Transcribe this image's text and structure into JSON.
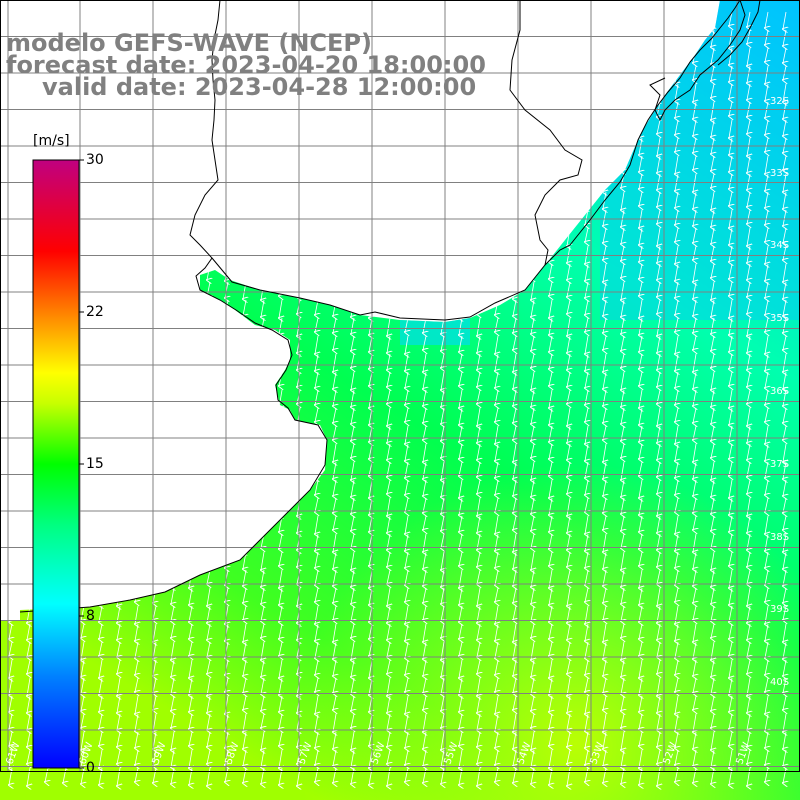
{
  "title": {
    "model": "modelo GEFS-WAVE (NCEP)",
    "forecast": "forecast date: 2023-04-20 18:00:00",
    "valid": "valid date: 2023-04-28 12:00:00"
  },
  "colorbar": {
    "unit": "[m/s]",
    "ticks": [
      "30",
      "22",
      "15",
      "8",
      "0"
    ],
    "min": 0,
    "max": 30,
    "colors": [
      "#0000ff",
      "#00c8ff",
      "#00ffff",
      "#00e030",
      "#00ff00",
      "#c8ff00",
      "#ffff00",
      "#ffa000",
      "#ff4000",
      "#ff0000",
      "#e00050",
      "#c00080"
    ]
  },
  "map": {
    "lat_labels": [
      "32S",
      "33S",
      "34S",
      "35S",
      "36S",
      "37S",
      "38S",
      "39S",
      "40S"
    ],
    "lon_labels": [
      "61W",
      "60W",
      "59W",
      "58W",
      "57W",
      "56W",
      "55W",
      "54W",
      "53W",
      "52W",
      "51W"
    ],
    "land_color": "#ffffff",
    "grid_color": "#808080",
    "coast_color": "#000000",
    "arrow_color": "#ffffff",
    "wind_direction": "toward south / south-southwest"
  }
}
